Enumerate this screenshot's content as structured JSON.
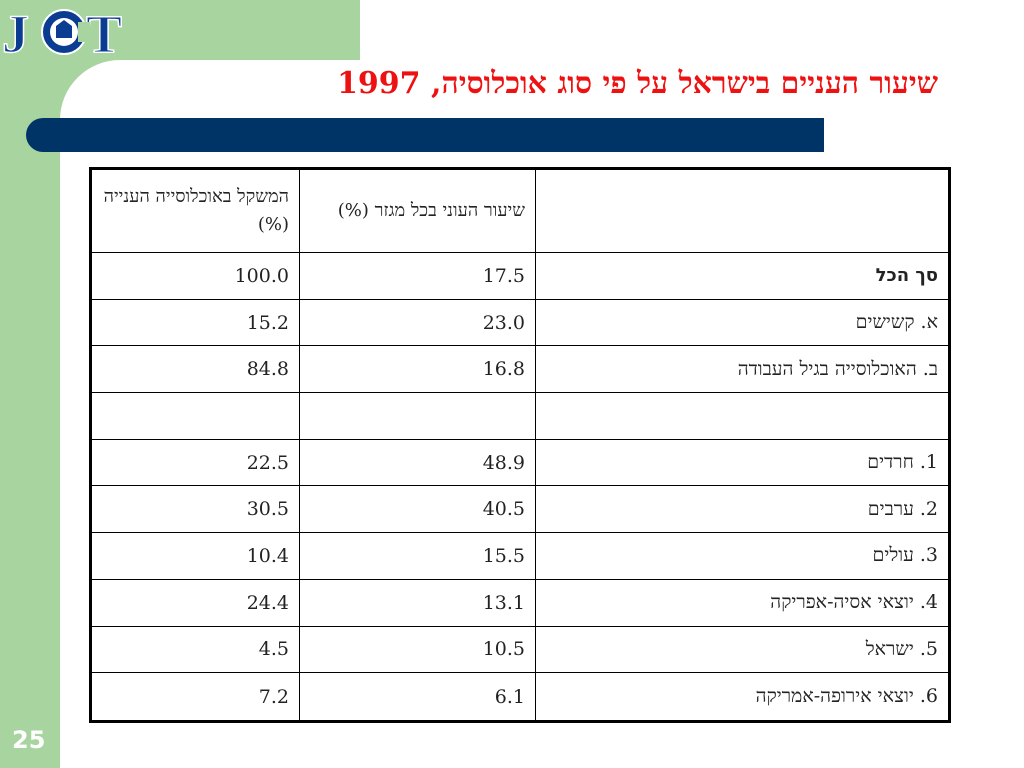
{
  "slide": {
    "title": "שיעור העניים בישראל על פי סוג אוכלוסיה, 1997",
    "page_number": "25",
    "logo_text": "JCT"
  },
  "table": {
    "headers": {
      "label": "",
      "poverty_rate": "שיעור העוני בכל מגזר (%)",
      "share_of_poor": "המשקל באוכלוסייה הענייה (%)"
    },
    "rows": [
      {
        "label": "סך הכל",
        "poverty_rate": "17.5",
        "share_of_poor": "100.0"
      },
      {
        "label": "א. קשישים",
        "poverty_rate": "23.0",
        "share_of_poor": "15.2"
      },
      {
        "label": "ב. האוכלוסייה בגיל העבודה",
        "poverty_rate": "16.8",
        "share_of_poor": "84.8"
      },
      {
        "label": "",
        "poverty_rate": "",
        "share_of_poor": ""
      },
      {
        "label": "1. חרדים",
        "poverty_rate": "48.9",
        "share_of_poor": "22.5"
      },
      {
        "label": "2. ערבים",
        "poverty_rate": "40.5",
        "share_of_poor": "30.5"
      },
      {
        "label": "3. עולים",
        "poverty_rate": "15.5",
        "share_of_poor": "10.4"
      },
      {
        "label": "4. יוצאי אסיה-אפריקה",
        "poverty_rate": "13.1",
        "share_of_poor": "24.4"
      },
      {
        "label": "5. ישראל",
        "poverty_rate": "10.5",
        "share_of_poor": "4.5"
      },
      {
        "label": "6. יוצאי אירופה-אמריקה",
        "poverty_rate": "6.1",
        "share_of_poor": "7.2"
      }
    ]
  },
  "colors": {
    "title": "#ee1111",
    "bar": "#003366",
    "frame": "#a8d4a0",
    "logo": "#0a3d91"
  }
}
